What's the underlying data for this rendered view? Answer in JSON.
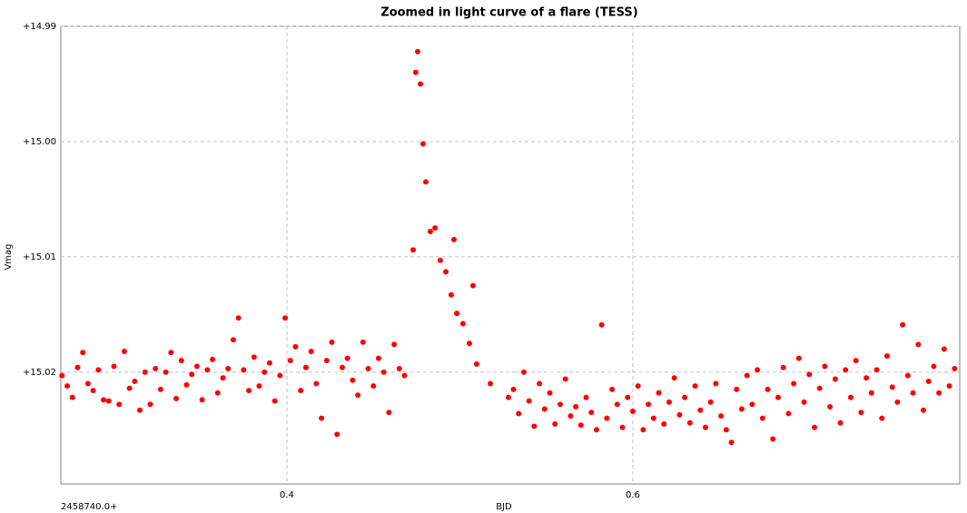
{
  "chart_data": {
    "type": "scatter",
    "title": "Zoomed in light curve of a flare (TESS)",
    "x_label": "BJD",
    "y_label": "Vmag",
    "x_offset_label": "2458740.0+",
    "color": "#ff0000",
    "grid": true,
    "y_inverted": true,
    "xlim": [
      0.2693,
      0.789
    ],
    "ylim": [
      14.99,
      15.0297
    ],
    "xticks": [
      0.4,
      0.6
    ],
    "yticks": [
      {
        "value": 14.99,
        "label": "+14.99"
      },
      {
        "value": 15.0,
        "label": "+15.00"
      },
      {
        "value": 15.01,
        "label": "+15.01"
      },
      {
        "value": 15.02,
        "label": "+15.02"
      }
    ],
    "x": [
      0.27,
      0.273,
      0.276,
      0.279,
      0.282,
      0.285,
      0.288,
      0.291,
      0.294,
      0.297,
      0.3,
      0.303,
      0.306,
      0.309,
      0.312,
      0.315,
      0.318,
      0.321,
      0.324,
      0.327,
      0.33,
      0.333,
      0.336,
      0.339,
      0.342,
      0.345,
      0.348,
      0.351,
      0.354,
      0.357,
      0.36,
      0.363,
      0.366,
      0.369,
      0.372,
      0.375,
      0.378,
      0.381,
      0.384,
      0.387,
      0.39,
      0.393,
      0.396,
      0.399,
      0.402,
      0.405,
      0.408,
      0.411,
      0.414,
      0.417,
      0.42,
      0.423,
      0.426,
      0.429,
      0.432,
      0.435,
      0.438,
      0.441,
      0.444,
      0.447,
      0.45,
      0.453,
      0.456,
      0.459,
      0.462,
      0.465,
      0.468,
      0.473,
      0.4745,
      0.4756,
      0.4772,
      0.4787,
      0.4803,
      0.4829,
      0.4856,
      0.4887,
      0.4919,
      0.495,
      0.4966,
      0.4982,
      0.5018,
      0.5055,
      0.5076,
      0.5097,
      0.5176,
      0.5281,
      0.531,
      0.534,
      0.537,
      0.54,
      0.543,
      0.546,
      0.549,
      0.552,
      0.555,
      0.558,
      0.561,
      0.564,
      0.567,
      0.57,
      0.573,
      0.576,
      0.579,
      0.582,
      0.585,
      0.588,
      0.591,
      0.594,
      0.597,
      0.6,
      0.603,
      0.606,
      0.609,
      0.612,
      0.615,
      0.618,
      0.621,
      0.624,
      0.627,
      0.63,
      0.633,
      0.636,
      0.639,
      0.642,
      0.645,
      0.648,
      0.651,
      0.654,
      0.657,
      0.66,
      0.663,
      0.666,
      0.669,
      0.672,
      0.675,
      0.678,
      0.681,
      0.684,
      0.687,
      0.69,
      0.693,
      0.696,
      0.699,
      0.702,
      0.705,
      0.708,
      0.711,
      0.714,
      0.717,
      0.72,
      0.723,
      0.726,
      0.729,
      0.732,
      0.735,
      0.738,
      0.741,
      0.744,
      0.747,
      0.75,
      0.753,
      0.756,
      0.759,
      0.762,
      0.765,
      0.768,
      0.771,
      0.774,
      0.777,
      0.78,
      0.783,
      0.786
    ],
    "values": [
      15.0203,
      15.0212,
      15.0222,
      15.0196,
      15.0183,
      15.021,
      15.0216,
      15.0198,
      15.0224,
      15.0225,
      15.0195,
      15.0228,
      15.0182,
      15.0214,
      15.0208,
      15.0233,
      15.02,
      15.0228,
      15.0197,
      15.0215,
      15.02,
      15.0183,
      15.0223,
      15.019,
      15.0211,
      15.0202,
      15.0195,
      15.0224,
      15.0198,
      15.0189,
      15.0218,
      15.0205,
      15.0197,
      15.0172,
      15.0153,
      15.0198,
      15.0216,
      15.0187,
      15.0212,
      15.02,
      15.0192,
      15.0225,
      15.0203,
      15.0153,
      15.019,
      15.0178,
      15.0216,
      15.0196,
      15.0182,
      15.021,
      15.024,
      15.019,
      15.0174,
      15.0254,
      15.0196,
      15.0188,
      15.0207,
      15.022,
      15.0174,
      15.0197,
      15.0212,
      15.0188,
      15.02,
      15.0235,
      15.0176,
      15.0197,
      15.0203,
      15.0094,
      14.994,
      14.9922,
      14.995,
      15.0002,
      15.0035,
      15.0078,
      15.0075,
      15.0103,
      15.0113,
      15.0133,
      15.0085,
      15.0149,
      15.0158,
      15.0175,
      15.0125,
      15.0193,
      15.021,
      15.0222,
      15.0215,
      15.0236,
      15.02,
      15.0225,
      15.0247,
      15.021,
      15.0232,
      15.0218,
      15.0245,
      15.0228,
      15.0206,
      15.0238,
      15.023,
      15.0246,
      15.0222,
      15.0235,
      15.025,
      15.0159,
      15.024,
      15.0215,
      15.0228,
      15.0248,
      15.0222,
      15.0234,
      15.0212,
      15.025,
      15.0228,
      15.024,
      15.0218,
      15.0245,
      15.0226,
      15.0205,
      15.0237,
      15.0222,
      15.0244,
      15.0212,
      15.0233,
      15.0248,
      15.0226,
      15.021,
      15.0238,
      15.025,
      15.0261,
      15.0215,
      15.0232,
      15.0203,
      15.0228,
      15.0198,
      15.024,
      15.0215,
      15.0258,
      15.0222,
      15.0196,
      15.0236,
      15.021,
      15.0188,
      15.0226,
      15.0202,
      15.0248,
      15.0214,
      15.0195,
      15.023,
      15.0206,
      15.0244,
      15.0198,
      15.0222,
      15.019,
      15.0235,
      15.0205,
      15.0218,
      15.0198,
      15.024,
      15.0186,
      15.0213,
      15.0226,
      15.0159,
      15.0203,
      15.0218,
      15.0176,
      15.0233,
      15.0208,
      15.0195,
      15.0218,
      15.018,
      15.0212,
      15.0197
    ]
  }
}
